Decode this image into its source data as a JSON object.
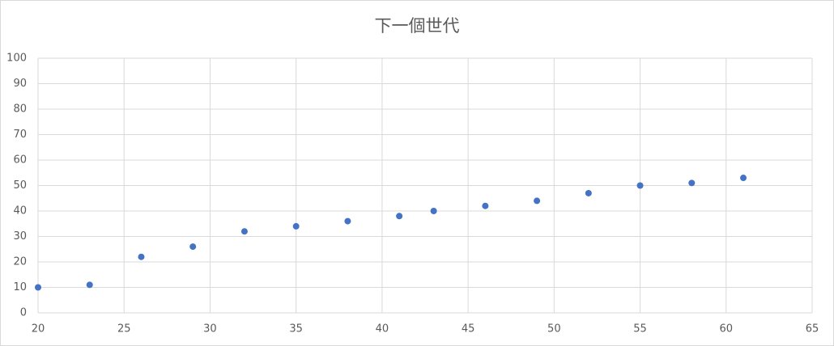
{
  "chart_data": {
    "type": "scatter",
    "title": "下一個世代",
    "x": [
      20,
      23,
      26,
      29,
      32,
      35,
      38,
      41,
      43,
      46,
      49,
      52,
      55,
      58,
      61
    ],
    "values": [
      10,
      11,
      22,
      26,
      32,
      34,
      36,
      38,
      40,
      42,
      44,
      47,
      50,
      51,
      53
    ],
    "color": "#4472c4",
    "xlim": [
      20,
      65
    ],
    "xticks": [
      20,
      25,
      30,
      35,
      40,
      45,
      50,
      55,
      60,
      65
    ],
    "ylim": [
      0,
      100
    ],
    "yticks": [
      0,
      10,
      20,
      30,
      40,
      50,
      60,
      70,
      80,
      90,
      100
    ],
    "grid": true
  }
}
